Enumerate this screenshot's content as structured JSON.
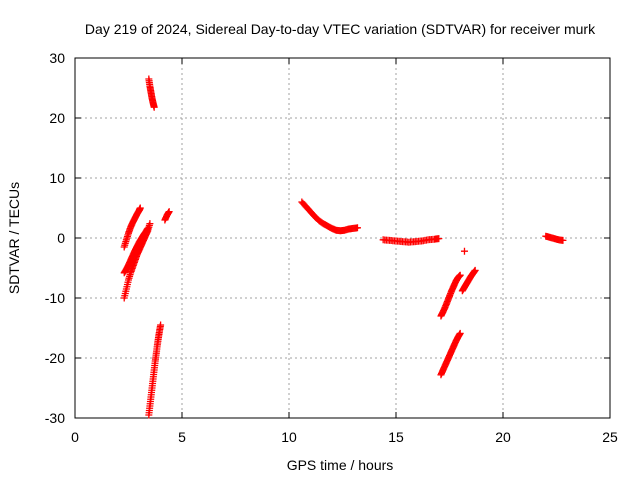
{
  "chart_data": {
    "type": "scatter",
    "title": "Day 219 of 2024, Sidereal Day-to-day VTEC variation (SDTVAR) for receiver murk",
    "xlabel": "GPS time / hours",
    "ylabel": "SDTVAR / TECUs",
    "xlim": [
      0,
      25
    ],
    "ylim": [
      -30,
      30
    ],
    "xticks": [
      0,
      5,
      10,
      15,
      20,
      25
    ],
    "yticks": [
      -30,
      -20,
      -10,
      0,
      10,
      20,
      30
    ],
    "xtick_labels": [
      "0",
      "5",
      "10",
      "15",
      "20",
      "25"
    ],
    "ytick_labels": [
      "-30",
      "-20",
      "-10",
      "0",
      "10",
      "20",
      "30"
    ],
    "grid": true,
    "marker": "plus",
    "color": "#ff0000",
    "segments": [
      {
        "x": [
          3.45,
          3.5,
          3.55,
          3.6,
          3.65,
          3.7
        ],
        "y": [
          26.5,
          25.3,
          24.3,
          23.3,
          22.5,
          21.8
        ]
      },
      {
        "x": [
          2.3,
          2.4,
          2.5,
          2.6,
          2.7,
          2.8,
          2.9,
          3.0,
          3.05
        ],
        "y": [
          -1.5,
          -0.3,
          0.8,
          1.8,
          2.6,
          3.3,
          4.0,
          4.6,
          5.0
        ]
      },
      {
        "x": [
          2.3,
          2.4,
          2.5,
          2.6,
          2.7,
          2.8,
          2.9,
          3.0,
          3.1,
          3.2,
          3.3,
          3.4,
          3.5
        ],
        "y": [
          -10.0,
          -8.5,
          -7.0,
          -5.8,
          -4.8,
          -3.8,
          -2.8,
          -2.0,
          -1.2,
          -0.4,
          0.4,
          1.2,
          2.4
        ]
      },
      {
        "x": [
          2.3,
          2.4,
          2.5,
          2.6,
          2.7,
          2.8,
          2.9,
          3.0,
          3.1,
          3.2,
          3.3,
          3.4
        ],
        "y": [
          -5.8,
          -5.2,
          -4.5,
          -3.7,
          -2.9,
          -2.1,
          -1.4,
          -0.7,
          -0.1,
          0.5,
          1.0,
          1.6
        ]
      },
      {
        "x": [
          4.2,
          4.3,
          4.4
        ],
        "y": [
          3.0,
          3.8,
          4.4
        ]
      },
      {
        "x": [
          3.45,
          3.5,
          3.55,
          3.6,
          3.65,
          3.7,
          3.75,
          3.8,
          3.85,
          3.9,
          3.95,
          4.0
        ],
        "y": [
          -29.5,
          -28.0,
          -26.5,
          -25.0,
          -23.5,
          -22.0,
          -20.5,
          -19.2,
          -17.8,
          -16.6,
          -15.5,
          -14.5
        ]
      },
      {
        "x": [
          10.6,
          10.8,
          11.0,
          11.2,
          11.4,
          11.6,
          11.8,
          12.0,
          12.2,
          12.4,
          12.6,
          12.8,
          13.0,
          13.2
        ],
        "y": [
          6.0,
          5.2,
          4.4,
          3.6,
          2.9,
          2.4,
          2.0,
          1.6,
          1.3,
          1.2,
          1.3,
          1.5,
          1.6,
          1.7
        ]
      },
      {
        "x": [
          14.4,
          14.7,
          15.0,
          15.3,
          15.6,
          15.9,
          16.2,
          16.5,
          16.8,
          17.0
        ],
        "y": [
          -0.3,
          -0.4,
          -0.5,
          -0.6,
          -0.7,
          -0.6,
          -0.5,
          -0.3,
          -0.2,
          -0.1
        ]
      },
      {
        "x": [
          17.1,
          17.2,
          17.3,
          17.4,
          17.5,
          17.6,
          17.7,
          17.8,
          17.9,
          18.0
        ],
        "y": [
          -13.0,
          -12.3,
          -11.5,
          -10.6,
          -9.7,
          -8.8,
          -8.0,
          -7.2,
          -6.6,
          -6.2
        ]
      },
      {
        "x": [
          17.1,
          17.2,
          17.3,
          17.4,
          17.5,
          17.6,
          17.7,
          17.8,
          17.9,
          18.0
        ],
        "y": [
          -22.8,
          -22.0,
          -21.2,
          -20.4,
          -19.6,
          -18.8,
          -18.0,
          -17.2,
          -16.5,
          -15.9
        ]
      },
      {
        "x": [
          18.2
        ],
        "y": [
          -2.2
        ]
      },
      {
        "x": [
          18.1,
          18.2,
          18.3,
          18.4,
          18.5,
          18.6,
          18.7
        ],
        "y": [
          -8.8,
          -8.2,
          -7.6,
          -7.0,
          -6.4,
          -5.9,
          -5.4
        ]
      },
      {
        "x": [
          22.0,
          22.2,
          22.4,
          22.6,
          22.8
        ],
        "y": [
          0.3,
          0.1,
          -0.1,
          -0.3,
          -0.4
        ]
      }
    ]
  }
}
